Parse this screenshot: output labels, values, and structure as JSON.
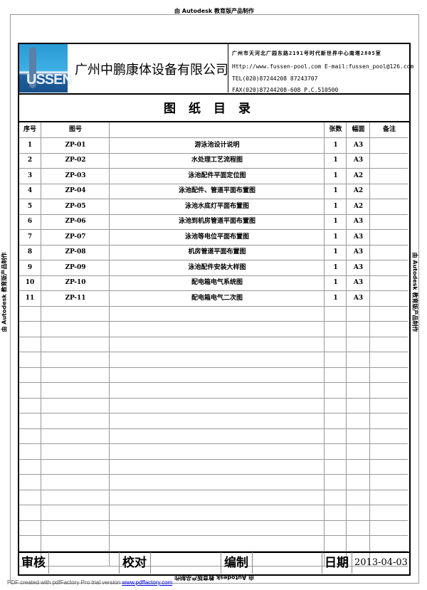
{
  "watermark": "由 Autodesk 教育版产品制作",
  "header": {
    "logo_text": "USSEN",
    "company": "广州中鹏康体设备有限公司",
    "address": "广州市天河北广园东路2191号时代新世界中心南塔2805室",
    "web": "Http://www.fussen-pool.com   E-mail:fussen_pool@126.com",
    "tel": "TEL(020)87244208 87243707",
    "fax": "FAX(020)87244208-608 P.C.510500"
  },
  "title": "图纸目录",
  "table": {
    "headers": [
      "序号",
      "图号",
      "",
      "张数",
      "幅面",
      "备注"
    ],
    "rows": [
      [
        "1",
        "ZP-01",
        "游泳池设计说明",
        "1",
        "A3",
        ""
      ],
      [
        "2",
        "ZP-02",
        "水处理工艺流程图",
        "1",
        "A3",
        ""
      ],
      [
        "3",
        "ZP-03",
        "泳池配件平面定位图",
        "1",
        "A2",
        ""
      ],
      [
        "4",
        "ZP-04",
        "泳池配件、管道平面布置图",
        "1",
        "A2",
        ""
      ],
      [
        "5",
        "ZP-05",
        "泳池水底灯平面布置图",
        "1",
        "A2",
        ""
      ],
      [
        "6",
        "ZP-06",
        "泳池到机房管道平面布置图",
        "1",
        "A3",
        ""
      ],
      [
        "7",
        "ZP-07",
        "泳池等电位平面布置图",
        "1",
        "A3",
        ""
      ],
      [
        "8",
        "ZP-08",
        "机房管道平面布置图",
        "1",
        "A3",
        ""
      ],
      [
        "9",
        "ZP-09",
        "泳池配件安装大样图",
        "1",
        "A3",
        ""
      ],
      [
        "10",
        "ZP-10",
        "配电箱电气系统图",
        "1",
        "A3",
        ""
      ],
      [
        "11",
        "ZP-11",
        "配电箱电气二次图",
        "1",
        "A3",
        ""
      ]
    ]
  },
  "footer": {
    "review": "审核",
    "check": "校对",
    "compile": "编制",
    "date_label": "日期",
    "date": "2013-04-03"
  },
  "pdf_note": {
    "text": "PDF created with pdfFactory Pro trial version ",
    "link": "www.pdffactory.com"
  }
}
